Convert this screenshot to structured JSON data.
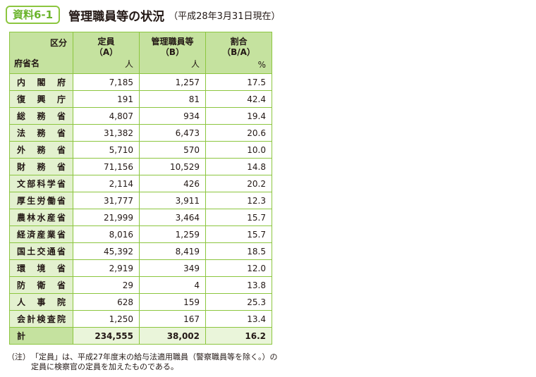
{
  "header": {
    "badge": "資料6-1",
    "title": "管理職員等の状況",
    "subtitle": "（平成28年3月31日現在）"
  },
  "table": {
    "head": {
      "kubun": "区分",
      "fusho": "府省名",
      "teiin": [
        "定員",
        "（A）"
      ],
      "kanri": [
        "管理職員等",
        "（B）"
      ],
      "wariai": [
        "割合",
        "（B/A）"
      ],
      "unit_people": "人",
      "unit_pct": "%"
    },
    "rows": [
      {
        "name": "内閣府",
        "teiin": "7,185",
        "kanri": "1,257",
        "wariai": "17.5"
      },
      {
        "name": "復興庁",
        "teiin": "191",
        "kanri": "81",
        "wariai": "42.4"
      },
      {
        "name": "総務省",
        "teiin": "4,807",
        "kanri": "934",
        "wariai": "19.4"
      },
      {
        "name": "法務省",
        "teiin": "31,382",
        "kanri": "6,473",
        "wariai": "20.6"
      },
      {
        "name": "外務省",
        "teiin": "5,710",
        "kanri": "570",
        "wariai": "10.0"
      },
      {
        "name": "財務省",
        "teiin": "71,156",
        "kanri": "10,529",
        "wariai": "14.8"
      },
      {
        "name": "文部科学省",
        "teiin": "2,114",
        "kanri": "426",
        "wariai": "20.2"
      },
      {
        "name": "厚生労働省",
        "teiin": "31,777",
        "kanri": "3,911",
        "wariai": "12.3"
      },
      {
        "name": "農林水産省",
        "teiin": "21,999",
        "kanri": "3,464",
        "wariai": "15.7"
      },
      {
        "name": "経済産業省",
        "teiin": "8,016",
        "kanri": "1,259",
        "wariai": "15.7"
      },
      {
        "name": "国土交通省",
        "teiin": "45,392",
        "kanri": "8,419",
        "wariai": "18.5"
      },
      {
        "name": "環境省",
        "teiin": "2,919",
        "kanri": "349",
        "wariai": "12.0"
      },
      {
        "name": "防衛省",
        "teiin": "29",
        "kanri": "4",
        "wariai": "13.8"
      },
      {
        "name": "人事院",
        "teiin": "628",
        "kanri": "159",
        "wariai": "25.3"
      },
      {
        "name": "会計検査院",
        "teiin": "1,250",
        "kanri": "167",
        "wariai": "13.4"
      }
    ],
    "total": {
      "name": "計",
      "teiin": "234,555",
      "kanri": "38,002",
      "wariai": "16.2"
    }
  },
  "note": {
    "mark": "（注）",
    "text": "「定員」は、平成27年度末の給与法適用職員（警察職員等を除く。）の定員に検察官の定員を加えたものである。"
  },
  "colors": {
    "accent": "#8cc63f",
    "header_bg": "#c5e29f",
    "name_bg": "#e3f1cf"
  }
}
